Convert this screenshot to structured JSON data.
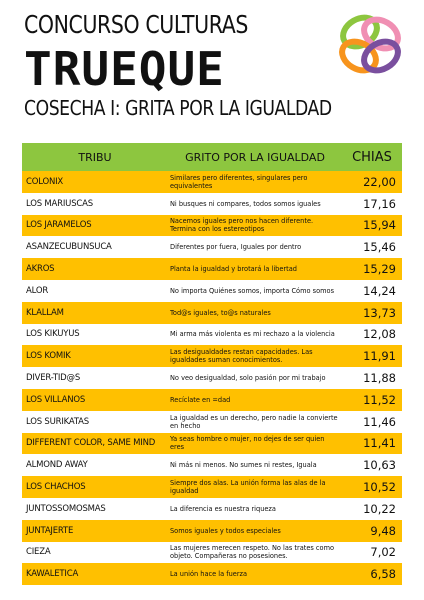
{
  "header": {
    "line1": "CONCURSO CULTURAS",
    "line2": "TRUEQUE",
    "line3": "COSECHA I: GRITA POR LA IGUALDAD"
  },
  "table": {
    "columns": [
      "TRIBU",
      "GRITO POR LA IGUALDAD",
      "CHIAS"
    ],
    "rows": [
      [
        "COLONIX",
        "Similares pero diferentes, singulares pero equivalentes",
        "22,00"
      ],
      [
        "LOS MARIUSCAS",
        "Ni busques ni compares, todos somos iguales",
        "17,16"
      ],
      [
        "LOS JARAMELOS",
        "Nacemos iguales pero nos hacen diferente. Termina con los estereotipos",
        "15,94"
      ],
      [
        "ASANZECUBUNSUCA",
        "Diferentes por fuera, Iguales por dentro",
        "15,46"
      ],
      [
        "AKROS",
        "Planta la igualdad y brotará la libertad",
        "15,29"
      ],
      [
        "ALOR",
        "No importa Quiénes somos, importa Cómo somos",
        "14,24"
      ],
      [
        "KLALLAM",
        "Tod@s iguales, to@s naturales",
        "13,73"
      ],
      [
        "LOS KIKUYUS",
        "Mi arma más violenta es mi rechazo a la violencia",
        "12,08"
      ],
      [
        "LOS KOMIK",
        "Las desigualdades restan capacidades. Las igualdades suman conocimientos.",
        "11,91"
      ],
      [
        "DIVER-TID@S",
        "No veo desigualdad, solo pasión por mi trabajo",
        "11,88"
      ],
      [
        "LOS VILLANOS",
        "Recíclate en =dad",
        "11,52"
      ],
      [
        "LOS SURIKATAS",
        "La igualdad es un derecho, pero nadie la convierte en hecho",
        "11,46"
      ],
      [
        "DIFFERENT COLOR, SAME MIND",
        "Ya seas hombre o mujer, no dejes de ser quien eres",
        "11,41"
      ],
      [
        "ALMOND AWAY",
        "Ni más ni menos. No sumes ni restes, Iguala",
        "10,63"
      ],
      [
        "LOS CHACHOS",
        "Siempre dos alas. La unión forma las alas de la igualdad",
        "10,52"
      ],
      [
        "JUNTOSSOMOSMAS",
        "La diferencia es nuestra riqueza",
        "10,22"
      ],
      [
        "JUNTAJERTE",
        "Somos iguales y todos especiales",
        "9,48"
      ],
      [
        "CIEZA",
        "Las mujeres merecen respeto. No las trates como objeto. Compañeras no posesiones.",
        "7,02"
      ],
      [
        "KAWALETICA",
        "La unión hace la fuerza",
        "6,58"
      ]
    ]
  }
}
